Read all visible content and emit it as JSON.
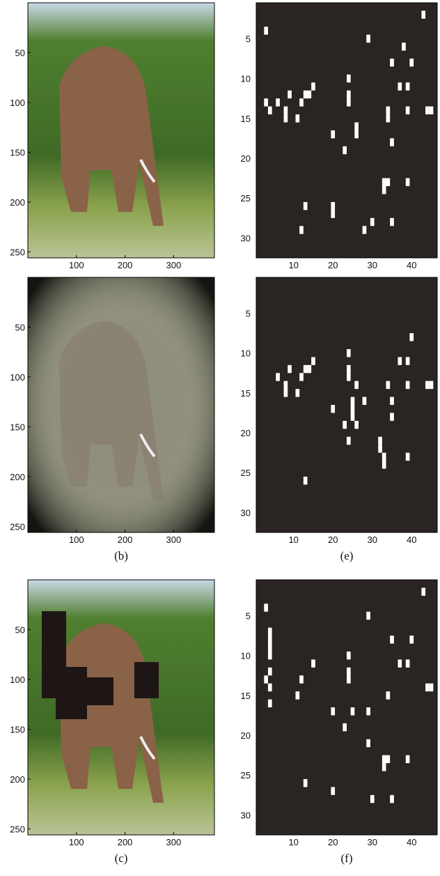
{
  "image_axes": {
    "xlim": [
      0,
      384
    ],
    "ylim": [
      0,
      256
    ],
    "xticks": [
      100,
      200,
      300
    ],
    "yticks": [
      50,
      100,
      150,
      200,
      250
    ]
  },
  "map_axes": {
    "xlim": [
      0.5,
      46.5
    ],
    "ylim": [
      0.5,
      32.5
    ],
    "xticks": [
      10,
      20,
      30,
      40
    ],
    "yticks": [
      5,
      10,
      15,
      20,
      25,
      30
    ]
  },
  "rows": [
    {
      "cells": [
        [
          3,
          4
        ],
        [
          43,
          2
        ],
        [
          29,
          5
        ],
        [
          38,
          6
        ],
        [
          35,
          8
        ],
        [
          40,
          8
        ],
        [
          24,
          10
        ],
        [
          3,
          13
        ],
        [
          4,
          14
        ],
        [
          6,
          13
        ],
        [
          8,
          14
        ],
        [
          8,
          15
        ],
        [
          9,
          12
        ],
        [
          11,
          15
        ],
        [
          12,
          13
        ],
        [
          13,
          12
        ],
        [
          14,
          12
        ],
        [
          15,
          11
        ],
        [
          24,
          12
        ],
        [
          24,
          13
        ],
        [
          34,
          14
        ],
        [
          34,
          15
        ],
        [
          37,
          11
        ],
        [
          39,
          11
        ],
        [
          39,
          14
        ],
        [
          44,
          14
        ],
        [
          45,
          14
        ],
        [
          20,
          17
        ],
        [
          26,
          17
        ],
        [
          26,
          16
        ],
        [
          23,
          19
        ],
        [
          35,
          18
        ],
        [
          33,
          23
        ],
        [
          34,
          23
        ],
        [
          33,
          24
        ],
        [
          39,
          23
        ],
        [
          13,
          26
        ],
        [
          20,
          26
        ],
        [
          20,
          27
        ],
        [
          12,
          29
        ],
        [
          28,
          29
        ],
        [
          30,
          28
        ],
        [
          35,
          28
        ]
      ]
    },
    {
      "left_caption": "(b)",
      "right_caption": "(e)",
      "cells": [
        [
          40,
          8
        ],
        [
          24,
          10
        ],
        [
          37,
          11
        ],
        [
          39,
          11
        ],
        [
          15,
          11
        ],
        [
          9,
          12
        ],
        [
          13,
          12
        ],
        [
          14,
          12
        ],
        [
          24,
          12
        ],
        [
          24,
          13
        ],
        [
          6,
          13
        ],
        [
          8,
          14
        ],
        [
          8,
          15
        ],
        [
          12,
          13
        ],
        [
          11,
          15
        ],
        [
          26,
          14
        ],
        [
          34,
          14
        ],
        [
          39,
          14
        ],
        [
          44,
          14
        ],
        [
          45,
          14
        ],
        [
          25,
          16
        ],
        [
          25,
          17
        ],
        [
          25,
          18
        ],
        [
          28,
          16
        ],
        [
          20,
          17
        ],
        [
          35,
          16
        ],
        [
          35,
          18
        ],
        [
          23,
          19
        ],
        [
          26,
          19
        ],
        [
          24,
          21
        ],
        [
          32,
          22
        ],
        [
          32,
          21
        ],
        [
          33,
          24
        ],
        [
          33,
          23
        ],
        [
          39,
          23
        ],
        [
          13,
          26
        ]
      ]
    },
    {
      "left_caption": "(c)",
      "right_caption": "(f)",
      "cells": [
        [
          3,
          4
        ],
        [
          43,
          2
        ],
        [
          29,
          5
        ],
        [
          4,
          7
        ],
        [
          4,
          8
        ],
        [
          4,
          9
        ],
        [
          4,
          10
        ],
        [
          35,
          8
        ],
        [
          40,
          8
        ],
        [
          24,
          10
        ],
        [
          24,
          12
        ],
        [
          24,
          13
        ],
        [
          4,
          12
        ],
        [
          3,
          13
        ],
        [
          4,
          14
        ],
        [
          4,
          16
        ],
        [
          12,
          13
        ],
        [
          11,
          15
        ],
        [
          15,
          11
        ],
        [
          37,
          11
        ],
        [
          39,
          11
        ],
        [
          34,
          15
        ],
        [
          44,
          14
        ],
        [
          45,
          14
        ],
        [
          20,
          17
        ],
        [
          25,
          17
        ],
        [
          29,
          17
        ],
        [
          23,
          19
        ],
        [
          29,
          21
        ],
        [
          33,
          23
        ],
        [
          34,
          23
        ],
        [
          33,
          24
        ],
        [
          39,
          23
        ],
        [
          13,
          26
        ],
        [
          20,
          27
        ],
        [
          30,
          28
        ],
        [
          35,
          28
        ]
      ]
    }
  ]
}
